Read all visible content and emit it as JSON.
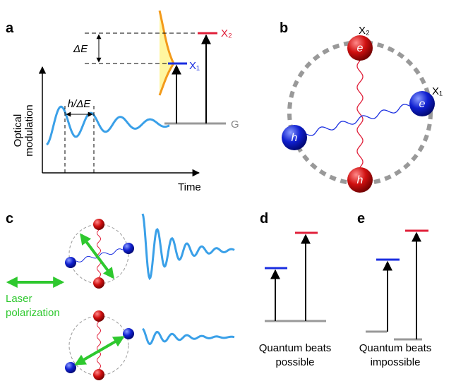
{
  "panels": {
    "a": {
      "label": "a",
      "delta_e": "ΔE",
      "period": "h/ΔE",
      "x1": "X₁",
      "x2": "X₂",
      "g": "G",
      "y_axis": [
        "Optical",
        "modulation"
      ],
      "x_axis": "Time"
    },
    "b": {
      "label": "b",
      "x1": "X₁",
      "x2": "X₂",
      "particles": [
        "e",
        "e",
        "h",
        "h"
      ]
    },
    "c": {
      "label": "c",
      "laser": [
        "Laser",
        "polarization"
      ]
    },
    "d": {
      "label": "d",
      "caption": [
        "Quantum beats",
        "possible"
      ]
    },
    "e": {
      "label": "e",
      "caption": [
        "Quantum beats",
        "impossible"
      ]
    }
  }
}
